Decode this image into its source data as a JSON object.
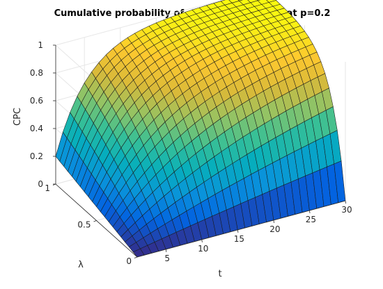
{
  "chart_data": {
    "type": "surface",
    "title": "Cumulative probability of complex contagion at p=0.2",
    "xlabel": "t",
    "ylabel": "λ",
    "zlabel": "CPC",
    "x_ticks": [
      "5",
      "10",
      "15",
      "20",
      "25",
      "30"
    ],
    "y_ticks": [
      "0",
      "0.5",
      "1"
    ],
    "z_ticks": [
      "0",
      "0.2",
      "0.4",
      "0.6",
      "0.8",
      "1"
    ],
    "xlim": [
      1,
      30
    ],
    "ylim": [
      0,
      1
    ],
    "zlim": [
      0,
      1
    ],
    "grid": true,
    "colormap": "parula",
    "p": 0.2,
    "surface": {
      "t": [
        1,
        30
      ],
      "lambda": [
        0,
        1
      ],
      "t_step": 1,
      "lambda_step": 0.05,
      "model": "CPC(t, λ) = 1 - (1 - 0.2·λ)^t",
      "corner_values": {
        "t1_lambda0": 0.0,
        "t1_lambda1": 0.2,
        "t30_lambda0": 0.0,
        "t30_lambda1": 0.9988
      }
    }
  }
}
